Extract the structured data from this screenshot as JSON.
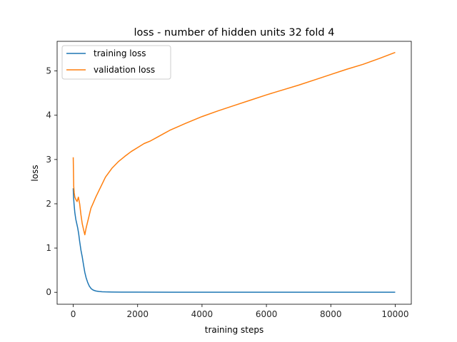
{
  "chart_data": {
    "type": "line",
    "title": "loss - number of hidden units 32 fold 4",
    "xlabel": "training steps",
    "ylabel": "loss",
    "xlim": [
      -500,
      10500
    ],
    "ylim": [
      -0.27,
      5.67
    ],
    "xticks": [
      0,
      2000,
      4000,
      6000,
      8000,
      10000
    ],
    "yticks": [
      0,
      1,
      2,
      3,
      4,
      5
    ],
    "grid": false,
    "legend": {
      "location": "upper-left"
    },
    "series": [
      {
        "name": "training loss",
        "color": "#1f77b4",
        "x": [
          0,
          10,
          25,
          50,
          80,
          110,
          140,
          170,
          200,
          240,
          280,
          320,
          360,
          400,
          450,
          500,
          560,
          620,
          700,
          800,
          900,
          1000,
          1200,
          1500,
          2000,
          3000,
          4000,
          5000,
          6000,
          7000,
          8000,
          9000,
          10000
        ],
        "values": [
          2.35,
          2.15,
          2.0,
          1.8,
          1.65,
          1.55,
          1.45,
          1.32,
          1.15,
          0.95,
          0.8,
          0.62,
          0.45,
          0.33,
          0.22,
          0.14,
          0.08,
          0.05,
          0.03,
          0.018,
          0.012,
          0.009,
          0.006,
          0.004,
          0.003,
          0.002,
          0.0015,
          0.0012,
          0.001,
          0.001,
          0.001,
          0.001,
          0.001
        ]
      },
      {
        "name": "validation loss",
        "color": "#ff7f0e",
        "x": [
          0,
          15,
          30,
          50,
          80,
          120,
          160,
          200,
          240,
          280,
          320,
          360,
          400,
          450,
          500,
          550,
          600,
          700,
          800,
          900,
          1000,
          1200,
          1400,
          1600,
          1800,
          2000,
          2200,
          2400,
          2600,
          2800,
          3000,
          3500,
          4000,
          4500,
          5000,
          5500,
          6000,
          6500,
          7000,
          7500,
          8000,
          8500,
          9000,
          9500,
          10000
        ],
        "values": [
          3.05,
          2.4,
          2.25,
          2.15,
          2.1,
          2.05,
          2.15,
          2.0,
          1.75,
          1.55,
          1.42,
          1.3,
          1.45,
          1.6,
          1.75,
          1.9,
          1.98,
          2.15,
          2.3,
          2.45,
          2.6,
          2.8,
          2.95,
          3.07,
          3.18,
          3.27,
          3.36,
          3.42,
          3.5,
          3.58,
          3.66,
          3.82,
          3.97,
          4.1,
          4.22,
          4.34,
          4.46,
          4.57,
          4.68,
          4.8,
          4.92,
          5.04,
          5.15,
          5.28,
          5.42
        ]
      }
    ]
  }
}
